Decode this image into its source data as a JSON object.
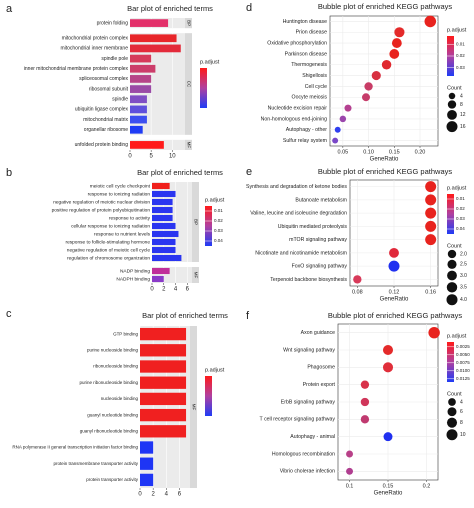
{
  "chart_data": [
    {
      "type": "bar",
      "panel": "a",
      "title": "Bar plot of enriched terms",
      "groups": [
        {
          "name": "BP",
          "categories": [
            "protein folding"
          ],
          "values": [
            9
          ],
          "colors": [
            "#e3306a"
          ]
        },
        {
          "name": "CC",
          "categories": [
            "mitochondrial protein complex",
            "mitochondrial inner membrane",
            "spindle pole",
            "inner mitochondrial membrane protein complex",
            "spliceosomal complex",
            "ribosomal subunit",
            "spindle",
            "ubiquitin ligase complex",
            "mitochondrial matrix",
            "organellar ribosome"
          ],
          "values": [
            11,
            12,
            5,
            6,
            5,
            5,
            4,
            4,
            4,
            3
          ],
          "colors": [
            "#e8262a",
            "#e32a3a",
            "#d63a5a",
            "#cc3d6a",
            "#b64488",
            "#9a4aa6",
            "#7f4ec4",
            "#5f50dc",
            "#3c4ff0",
            "#1f3cf5"
          ]
        },
        {
          "name": "MF",
          "categories": [
            "unfolded protein binding"
          ],
          "values": [
            8
          ],
          "colors": [
            "#ff1a1a"
          ]
        }
      ],
      "xlim": [
        0,
        13
      ],
      "xticks": [
        0,
        5,
        10
      ],
      "colorbar": {
        "title": "p.adjust",
        "colors": [
          "#ff1a1a",
          "#b040a0",
          "#1f3cf5"
        ]
      }
    },
    {
      "type": "bar",
      "panel": "b",
      "title": "Bar plot of enriched terms",
      "groups": [
        {
          "name": "BP",
          "categories": [
            "meiotic cell cycle checkpoint",
            "response to ionizing radiation",
            "negative regulation of meiotic nuclear division",
            "positive regulation of protein polyubiquitination",
            "response to activity",
            "cellular response to ionizing radiation",
            "response to nutrient levels",
            "response to follicle-stimulating hormone",
            "negative regulation of meiotic cell cycle",
            "regulation of chromosome organization"
          ],
          "values": [
            3,
            4,
            3.5,
            3.5,
            3.5,
            4,
            4.5,
            4,
            4,
            5
          ],
          "colors": [
            "#f0201c",
            "#2a35f0",
            "#2a35f0",
            "#2a35f0",
            "#2a35f0",
            "#2a35f0",
            "#2a35f0",
            "#2a35f0",
            "#2a35f0",
            "#2a35f0"
          ]
        },
        {
          "name": "MF",
          "categories": [
            "NADP binding",
            "NADPH binding"
          ],
          "values": [
            3,
            2
          ],
          "colors": [
            "#c02e9a",
            "#8a3ac8"
          ]
        }
      ],
      "xlim": [
        0,
        6.8
      ],
      "xticks": [
        0,
        2,
        4,
        6
      ],
      "colorbar": {
        "title": "p.adjust",
        "colors": [
          "#ff1a1a",
          "#b040a0",
          "#1f3cf5"
        ],
        "lim": [
          0.005,
          0.045
        ],
        "ticks": [
          0.01,
          0.02,
          0.03,
          0.04
        ]
      }
    },
    {
      "type": "bar",
      "panel": "c",
      "title": "Bar plot of enriched terms",
      "groups": [
        {
          "name": "MF",
          "categories": [
            "GTP binding",
            "purine nucleoside binding",
            "ribonucleoside binding",
            "purine ribonucleoside binding",
            "nucleoside binding",
            "guanyl nucleotide binding",
            "guanyl ribonucleotide binding",
            "RNA polymerase II general transcription initiation factor binding",
            "protein transmembrane transporter activity",
            "protein transporter activity"
          ],
          "values": [
            7,
            7,
            7,
            7,
            7,
            7,
            7,
            2,
            2,
            2
          ],
          "colors": [
            "#f02020",
            "#f02020",
            "#f02020",
            "#f02020",
            "#f02020",
            "#f02020",
            "#f02020",
            "#1e35f5",
            "#1e35f5",
            "#1e35f5"
          ]
        }
      ],
      "xlim": [
        0,
        7.6
      ],
      "xticks": [
        0,
        2,
        4,
        6
      ],
      "colorbar": {
        "title": "p.adjust",
        "colors": [
          "#ff1a1a",
          "#b040a0",
          "#1f3cf5"
        ]
      }
    },
    {
      "type": "bubble",
      "panel": "d",
      "title": "Bubble plot of enriched KEGG pathways",
      "xlabel": "GeneRatio",
      "categories": [
        "Huntington disease",
        "Prion disease",
        "Oxidative phosphorylation",
        "Parkinson disease",
        "Thermogenesis",
        "Shigellosis",
        "Cell cycle",
        "Oocyte meiosis",
        "Nucleotide excision repair",
        "Non-homologous end-joining",
        "Autophagy - other",
        "Sulfur relay system"
      ],
      "values": [
        0.22,
        0.16,
        0.155,
        0.15,
        0.135,
        0.115,
        0.1,
        0.095,
        0.06,
        0.05,
        0.04,
        0.035
      ],
      "sizes": [
        18,
        13,
        12,
        12,
        11,
        10,
        8,
        7,
        5,
        4,
        3,
        3
      ],
      "colors": [
        "#e8231e",
        "#e42a2a",
        "#e8231e",
        "#e8231e",
        "#e0282e",
        "#d83040",
        "#c83c66",
        "#c63c6a",
        "#b44090",
        "#9a46ac",
        "#3040f0",
        "#7a48c8"
      ],
      "xlim": [
        0.025,
        0.235
      ],
      "xticks": [
        0.05,
        {
          "value": 0.1,
          "label": "0.10"
        },
        0.15,
        {
          "value": 0.2,
          "label": "0.20"
        }
      ],
      "colorbar": {
        "title": "p.adjust",
        "colors": [
          "#ff1a1a",
          "#b040a0",
          "#1f3cf5"
        ],
        "lim": [
          0.003,
          0.037
        ],
        "ticks": [
          0.01,
          0.02,
          0.03
        ]
      },
      "size_legend": {
        "title": "Count",
        "values": [
          4,
          8,
          12,
          16
        ]
      }
    },
    {
      "type": "bubble",
      "panel": "e",
      "title": "Bubble plot of enriched KEGG pathways",
      "xlabel": "GeneRatio",
      "categories": [
        "Synthesis and degradation of ketone bodies",
        "Butanoate metabolism",
        "Valine, leucine and isoleucine degradation",
        "Ubiquitin mediated proteolysis",
        "mTOR signaling pathway",
        "Nicotinate and nicotinamide metabolism",
        "FoxO signaling pathway",
        "Terpenoid backbone biosynthesis"
      ],
      "values": [
        0.16,
        0.16,
        0.16,
        0.16,
        0.16,
        0.12,
        0.12,
        0.08
      ],
      "sizes": [
        4,
        4,
        4,
        4,
        4,
        3,
        4,
        2
      ],
      "colors": [
        "#e8231e",
        "#e8231e",
        "#e8231e",
        "#e8231e",
        "#e8231e",
        "#e0283a",
        "#2030f0",
        "#d83a5a"
      ],
      "xlim": [
        0.072,
        0.168
      ],
      "xticks": [
        0.08,
        0.12,
        0.16
      ],
      "colorbar": {
        "title": "p.adjust",
        "colors": [
          "#ff1a1a",
          "#b040a0",
          "#1f3cf5"
        ],
        "lim": [
          0.005,
          0.045
        ],
        "ticks": [
          0.01,
          0.02,
          0.03,
          0.04
        ]
      },
      "size_legend": {
        "title": "Count",
        "values": [
          {
            "value": 2,
            "label": "2.0"
          },
          2.5,
          {
            "value": 3,
            "label": "3.0"
          },
          3.5,
          {
            "value": 4,
            "label": "4.0"
          }
        ]
      }
    },
    {
      "type": "bubble",
      "panel": "f",
      "title": "Bubble plot of enriched KEGG pathways",
      "xlabel": "GeneRatio",
      "categories": [
        "Axon guidance",
        "Wnt signaling pathway",
        "Phagosome",
        "Protein export",
        "ErbB signaling pathway",
        "T cell receptor signaling pathway",
        "Autophagy - animal",
        "Homologous recombination",
        "Vibrio cholerae infection"
      ],
      "values": [
        0.21,
        0.15,
        0.15,
        0.12,
        0.12,
        0.12,
        0.15,
        0.1,
        0.1
      ],
      "sizes": [
        11,
        8,
        8,
        5,
        5,
        5,
        6,
        3,
        3
      ],
      "colors": [
        "#e8231e",
        "#e42a2a",
        "#e02e3a",
        "#d8324a",
        "#d0365a",
        "#c03a70",
        "#2030f0",
        "#b84088",
        "#b03e90"
      ],
      "xlim": [
        0.085,
        0.215
      ],
      "xticks": [
        0.1,
        0.15,
        0.2
      ],
      "colorbar": {
        "title": "p.adjust",
        "colors": [
          "#ff1a1a",
          "#b040a0",
          "#1f3cf5"
        ],
        "lim": [
          0.001,
          0.0135
        ],
        "ticks": [
          {
            "value": 0.0025,
            "label": "0.0025"
          },
          {
            "value": 0.005,
            "label": "0.0050"
          },
          {
            "value": 0.0075,
            "label": "0.0075"
          },
          {
            "value": 0.01,
            "label": "0.0100"
          },
          {
            "value": 0.0125,
            "label": "0.0125"
          }
        ]
      },
      "size_legend": {
        "title": "Count",
        "values": [
          4,
          6,
          8,
          10
        ]
      }
    }
  ]
}
